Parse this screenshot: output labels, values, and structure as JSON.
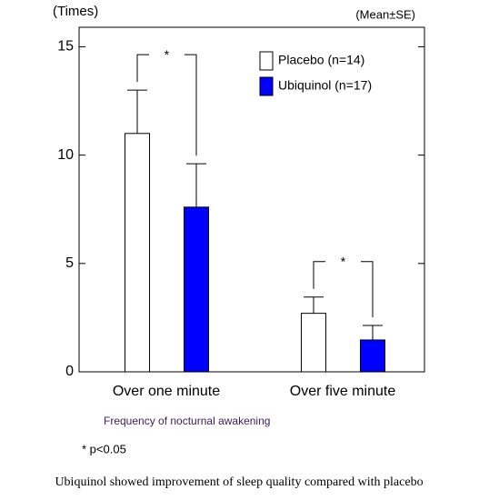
{
  "chart_data": {
    "type": "bar",
    "y_label": "(Times)",
    "note": "(Mean±SE)",
    "x_label": "Frequency of nocturnal awakening",
    "footnote": "* p<0.05",
    "caption": "Ubiquinol showed improvement of sleep quality compared with placebo",
    "categories": [
      "Over one minute",
      "Over five minute"
    ],
    "series": [
      {
        "name": "Placebo (n=14)",
        "color": "#ffffff",
        "values": [
          11.0,
          2.7
        ],
        "errors": [
          2.0,
          0.75
        ]
      },
      {
        "name": "Ubiquinol (n=17)",
        "color": "#0000ff",
        "values": [
          7.6,
          1.47
        ],
        "errors": [
          2.0,
          0.67
        ]
      }
    ],
    "significance": [
      "*",
      "*"
    ],
    "ylim": [
      0,
      15.9
    ],
    "yticks": [
      0,
      5,
      10,
      15
    ]
  }
}
